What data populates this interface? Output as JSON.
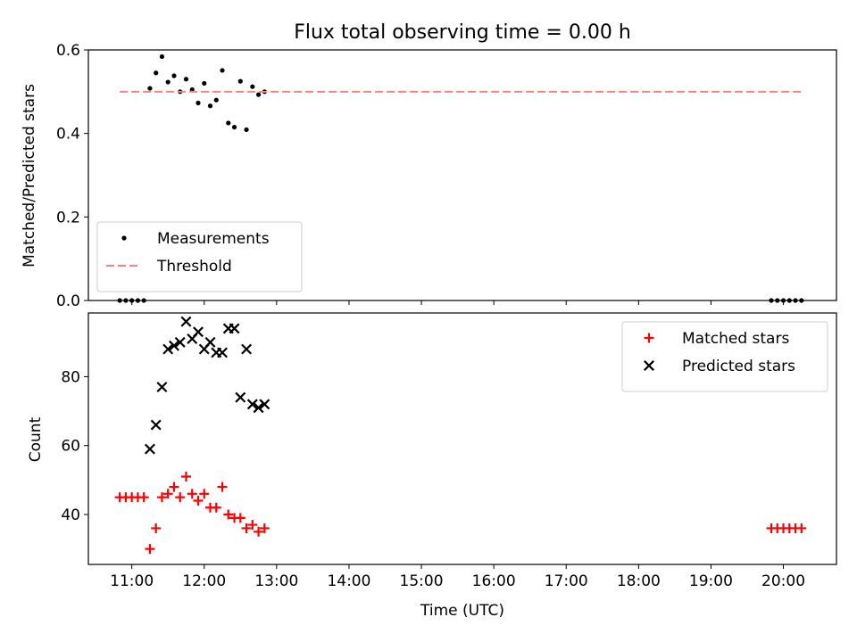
{
  "chart_data": [
    {
      "type": "scatter",
      "title": "Flux total observing time = 0.00 h",
      "xlabel": "",
      "ylabel": "Matched/Predicted stars",
      "xlim": [
        "10:24",
        "20:44"
      ],
      "ylim": [
        0,
        0.6
      ],
      "yticks": [
        "0.0",
        "0.2",
        "0.4",
        "0.6"
      ],
      "legend_position": "lower-left",
      "grid": false,
      "series": [
        {
          "name": "Measurements",
          "kind": "scatter",
          "marker": "dot",
          "color": "#000000",
          "points": [
            {
              "x": "10:50",
              "y": 0.0
            },
            {
              "x": "10:55",
              "y": 0.0
            },
            {
              "x": "11:00",
              "y": 0.0
            },
            {
              "x": "11:05",
              "y": 0.0
            },
            {
              "x": "11:10",
              "y": 0.0
            },
            {
              "x": "11:15",
              "y": 0.508
            },
            {
              "x": "11:20",
              "y": 0.545
            },
            {
              "x": "11:25",
              "y": 0.584
            },
            {
              "x": "11:30",
              "y": 0.523
            },
            {
              "x": "11:35",
              "y": 0.538
            },
            {
              "x": "11:40",
              "y": 0.5
            },
            {
              "x": "11:45",
              "y": 0.53
            },
            {
              "x": "11:50",
              "y": 0.505
            },
            {
              "x": "11:55",
              "y": 0.473
            },
            {
              "x": "12:00",
              "y": 0.52
            },
            {
              "x": "12:05",
              "y": 0.466
            },
            {
              "x": "12:10",
              "y": 0.48
            },
            {
              "x": "12:15",
              "y": 0.551
            },
            {
              "x": "12:20",
              "y": 0.425
            },
            {
              "x": "12:25",
              "y": 0.415
            },
            {
              "x": "12:30",
              "y": 0.525
            },
            {
              "x": "12:35",
              "y": 0.409
            },
            {
              "x": "12:40",
              "y": 0.512
            },
            {
              "x": "12:45",
              "y": 0.493
            },
            {
              "x": "12:50",
              "y": 0.5
            },
            {
              "x": "19:50",
              "y": 0.0
            },
            {
              "x": "19:55",
              "y": 0.0
            },
            {
              "x": "20:00",
              "y": 0.0
            },
            {
              "x": "20:05",
              "y": 0.0
            },
            {
              "x": "20:10",
              "y": 0.0
            },
            {
              "x": "20:15",
              "y": 0.0
            }
          ]
        },
        {
          "name": "Threshold",
          "kind": "line",
          "style": "dashed",
          "color": "#ff7f7f",
          "points": [
            {
              "x": "10:50",
              "y": 0.5
            },
            {
              "x": "20:15",
              "y": 0.5
            }
          ]
        }
      ]
    },
    {
      "type": "scatter",
      "title": "",
      "xlabel": "Time (UTC)",
      "ylabel": "Count",
      "xlim": [
        "10:24",
        "20:44"
      ],
      "ylim": [
        25.5,
        98.5
      ],
      "xticks": [
        "11:00",
        "12:00",
        "13:00",
        "14:00",
        "15:00",
        "16:00",
        "17:00",
        "18:00",
        "19:00",
        "20:00"
      ],
      "yticks": [
        "40",
        "60",
        "80"
      ],
      "legend_position": "top-right",
      "grid": false,
      "series": [
        {
          "name": "Matched stars",
          "kind": "scatter",
          "marker": "plus",
          "color": "#ff0000",
          "points": [
            {
              "x": "10:50",
              "y": 45
            },
            {
              "x": "10:55",
              "y": 45
            },
            {
              "x": "11:00",
              "y": 45
            },
            {
              "x": "11:05",
              "y": 45
            },
            {
              "x": "11:10",
              "y": 45
            },
            {
              "x": "11:15",
              "y": 30
            },
            {
              "x": "11:20",
              "y": 36
            },
            {
              "x": "11:25",
              "y": 45
            },
            {
              "x": "11:30",
              "y": 46
            },
            {
              "x": "11:35",
              "y": 48
            },
            {
              "x": "11:40",
              "y": 45
            },
            {
              "x": "11:45",
              "y": 51
            },
            {
              "x": "11:50",
              "y": 46
            },
            {
              "x": "11:55",
              "y": 44
            },
            {
              "x": "12:00",
              "y": 46
            },
            {
              "x": "12:05",
              "y": 42
            },
            {
              "x": "12:10",
              "y": 42
            },
            {
              "x": "12:15",
              "y": 48
            },
            {
              "x": "12:20",
              "y": 40
            },
            {
              "x": "12:25",
              "y": 39
            },
            {
              "x": "12:30",
              "y": 39
            },
            {
              "x": "12:35",
              "y": 36
            },
            {
              "x": "12:40",
              "y": 37
            },
            {
              "x": "12:45",
              "y": 35
            },
            {
              "x": "12:50",
              "y": 36
            },
            {
              "x": "19:50",
              "y": 36
            },
            {
              "x": "19:55",
              "y": 36
            },
            {
              "x": "20:00",
              "y": 36
            },
            {
              "x": "20:05",
              "y": 36
            },
            {
              "x": "20:10",
              "y": 36
            },
            {
              "x": "20:15",
              "y": 36
            }
          ]
        },
        {
          "name": "Predicted stars",
          "kind": "scatter",
          "marker": "x",
          "color": "#000000",
          "points": [
            {
              "x": "11:15",
              "y": 59
            },
            {
              "x": "11:20",
              "y": 66
            },
            {
              "x": "11:25",
              "y": 77
            },
            {
              "x": "11:30",
              "y": 88
            },
            {
              "x": "11:35",
              "y": 89
            },
            {
              "x": "11:40",
              "y": 90
            },
            {
              "x": "11:45",
              "y": 96
            },
            {
              "x": "11:50",
              "y": 91
            },
            {
              "x": "11:55",
              "y": 93
            },
            {
              "x": "12:00",
              "y": 88
            },
            {
              "x": "12:05",
              "y": 90
            },
            {
              "x": "12:10",
              "y": 87
            },
            {
              "x": "12:15",
              "y": 87
            },
            {
              "x": "12:20",
              "y": 94
            },
            {
              "x": "12:25",
              "y": 94
            },
            {
              "x": "12:30",
              "y": 74
            },
            {
              "x": "12:35",
              "y": 88
            },
            {
              "x": "12:40",
              "y": 72
            },
            {
              "x": "12:45",
              "y": 71
            },
            {
              "x": "12:50",
              "y": 72
            }
          ]
        }
      ]
    }
  ]
}
